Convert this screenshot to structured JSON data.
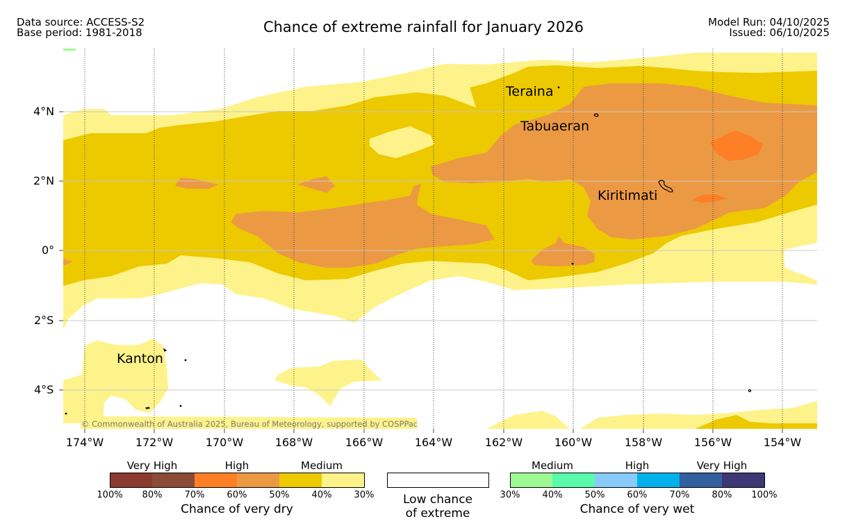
{
  "header": {
    "data_source": "Data source: ACCESS-S2",
    "base_period": "Base period: 1981-2018",
    "title": "Chance of extreme rainfall for January 2026",
    "model_run": "Model Run: 04/10/2025",
    "issued": "Issued: 06/10/2025"
  },
  "map": {
    "lat_labels": [
      "4°N",
      "2°N",
      "0°",
      "2°S",
      "4°S"
    ],
    "lon_labels": [
      "174°W",
      "172°W",
      "170°W",
      "168°W",
      "166°W",
      "164°W",
      "162°W",
      "160°W",
      "158°W",
      "156°W",
      "154°W"
    ],
    "places": [
      "Teraina",
      "Tabuaeran",
      "Kiritimati",
      "Kanton"
    ],
    "copyright": "© Commonwealth of Australia 2025, Bureau of Meteorology, supported by COSPPac",
    "colors": {
      "dry_30_40": "#fdf38a",
      "dry_40_50": "#edc900",
      "dry_50_60": "#ec9944",
      "dry_60_70": "#fe7f26",
      "wet_30_40": "#9dfa93"
    }
  },
  "legend": {
    "dry": {
      "categories": [
        "Very High",
        "High",
        "Medium"
      ],
      "colors": [
        "#8b3a2f",
        "#8a4b38",
        "#fe7f26",
        "#ec9944",
        "#edc900",
        "#fdf38a"
      ],
      "ticks": [
        "100%",
        "80%",
        "70%",
        "60%",
        "50%",
        "40%",
        "30%"
      ],
      "caption": "Chance of very dry"
    },
    "low": {
      "caption_line1": "Low chance",
      "caption_line2": "of extreme"
    },
    "wet": {
      "categories": [
        "Medium",
        "High",
        "Very High"
      ],
      "colors": [
        "#9dfa93",
        "#58fcab",
        "#88cafa",
        "#00b1ec",
        "#335f9e",
        "#3d3773"
      ],
      "ticks": [
        "30%",
        "40%",
        "50%",
        "60%",
        "70%",
        "80%",
        "100%"
      ],
      "caption": "Chance of very wet"
    }
  }
}
